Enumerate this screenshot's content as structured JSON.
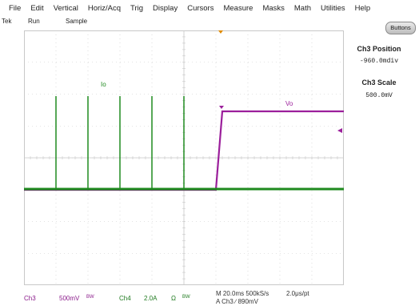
{
  "menu": [
    "File",
    "Edit",
    "Vertical",
    "Horiz/Acq",
    "Trig",
    "Display",
    "Cursors",
    "Measure",
    "Masks",
    "Math",
    "Utilities",
    "Help"
  ],
  "status": {
    "brand": "Tek",
    "run": "Run",
    "mode": "Sample"
  },
  "buttons_label": "Buttons",
  "side_panel": {
    "position_title": "Ch3 Position",
    "position_value": "-960.0mdiv",
    "scale_title": "Ch3 Scale",
    "scale_value": "500.0mV"
  },
  "traces": {
    "ch4_label": "Io",
    "ch3_label": "Vo"
  },
  "readouts": {
    "ch3_name": "Ch3",
    "ch3_scale": "500mV",
    "ch3_bw": "BW",
    "ch4_name": "Ch4",
    "ch4_scale": "2.0A",
    "ch4_ohm": "Ω",
    "ch4_bw": "BW",
    "timebase": "M 20.0ms 500kS/s",
    "per_point": "2.0μs/pt",
    "trigger": "A  Ch3  ∕  890mV"
  },
  "colors": {
    "ch3": "#9b1f9b",
    "ch4": "#1f8a1f",
    "grid": "#c8c8c8",
    "trigger_marker": "#e08a00"
  }
}
